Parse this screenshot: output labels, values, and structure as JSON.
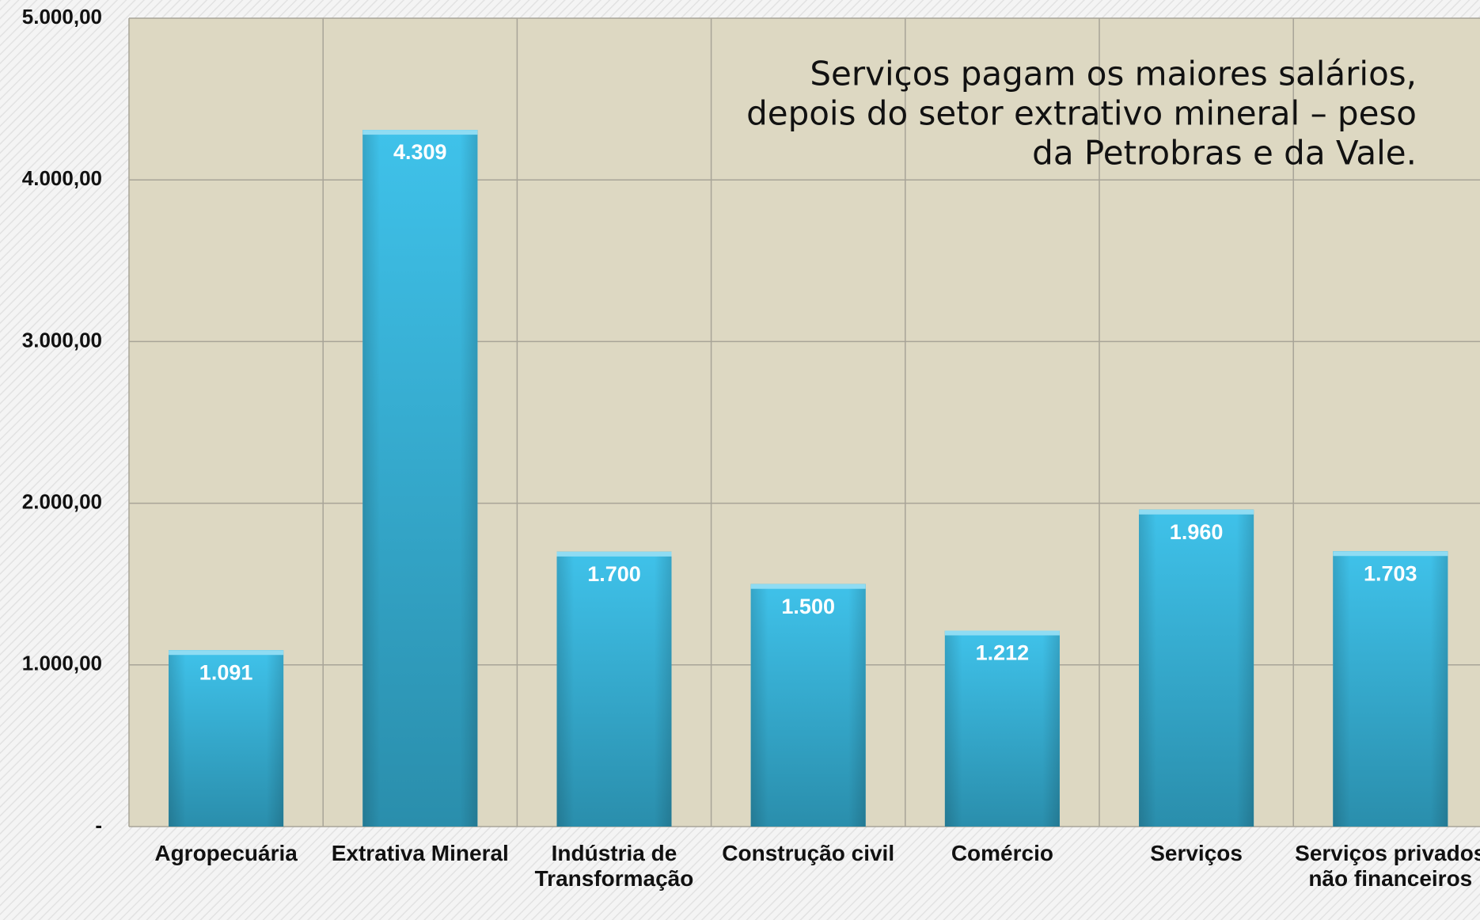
{
  "chart_data": {
    "type": "bar",
    "annotation": [
      "Serviços pagam os maiores salários,",
      "depois do setor extrativo mineral – peso",
      "da Petrobras e da Vale."
    ],
    "categories": [
      "Agropecuária",
      "Extrativa Mineral",
      "Indústria de Transformação",
      "Construção civil",
      "Comércio",
      "Serviços",
      "Serviços privados não financeiros"
    ],
    "values": [
      1091,
      4309,
      1700,
      1500,
      1212,
      1960,
      1703
    ],
    "value_labels": [
      "1.091",
      "4.309",
      "1.700",
      "1.500",
      "1.212",
      "1.960",
      "1.703"
    ],
    "color": "#38b4d8",
    "ylim": [
      0,
      5000
    ],
    "yticks": [
      {
        "value": 0,
        "label": "-"
      },
      {
        "value": 1000,
        "label": "1.000,00"
      },
      {
        "value": 2000,
        "label": "2.000,00"
      },
      {
        "value": 3000,
        "label": "3.000,00"
      },
      {
        "value": 4000,
        "label": "4.000,00"
      },
      {
        "value": 5000,
        "label": "5.000,00"
      }
    ],
    "grid": true
  }
}
